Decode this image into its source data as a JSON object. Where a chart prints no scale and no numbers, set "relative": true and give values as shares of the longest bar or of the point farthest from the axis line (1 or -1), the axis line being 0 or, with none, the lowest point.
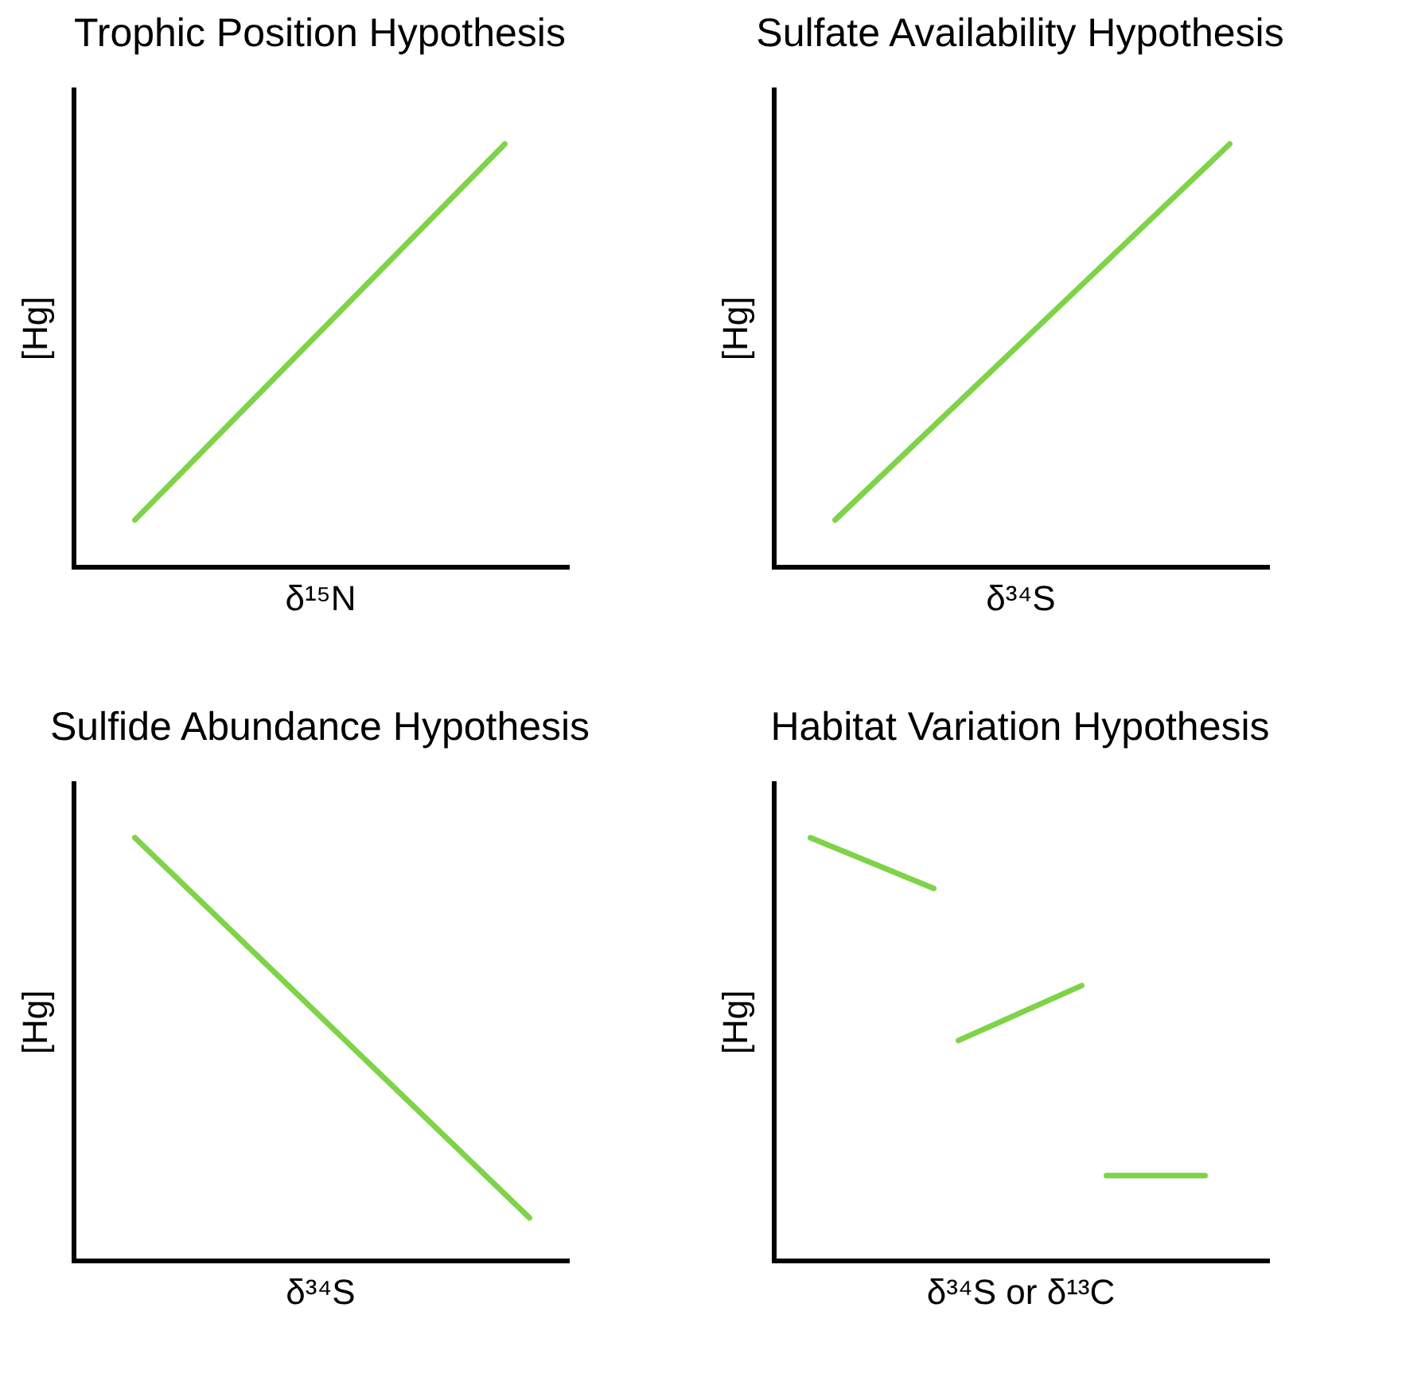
{
  "chart_data": [
    {
      "type": "line",
      "title": "Trophic Position Hypothesis",
      "xlabel": "δ¹⁵N",
      "ylabel": "[Hg]",
      "relative": true,
      "tick_labels": false,
      "categories": [
        null,
        null,
        null,
        null,
        null,
        null,
        null,
        null,
        null,
        null,
        null,
        null,
        null,
        null,
        null,
        null,
        null,
        null,
        null,
        null
      ],
      "series": [
        {
          "color": "#7ed348",
          "values": [
            null,
            null,
            0.11,
            null,
            null,
            null,
            null,
            null,
            null,
            null,
            null,
            null,
            null,
            null,
            null,
            null,
            null,
            1,
            null,
            null
          ]
        }
      ]
    },
    {
      "type": "line",
      "title": "Sulfate Availability Hypothesis",
      "xlabel": "δ³⁴S",
      "ylabel": "[Hg]",
      "relative": true,
      "tick_labels": false,
      "categories": [
        null,
        null,
        null,
        null,
        null,
        null,
        null,
        null,
        null,
        null,
        null,
        null,
        null,
        null,
        null,
        null,
        null,
        null,
        null,
        null
      ],
      "series": [
        {
          "color": "#7ed348",
          "values": [
            null,
            null,
            0.11,
            null,
            null,
            null,
            null,
            null,
            null,
            null,
            null,
            null,
            null,
            null,
            null,
            null,
            null,
            null,
            1,
            null
          ]
        }
      ]
    },
    {
      "type": "line",
      "title": "Sulfide Abundance Hypothesis",
      "xlabel": "δ³⁴S",
      "ylabel": "[Hg]",
      "relative": true,
      "tick_labels": false,
      "categories": [
        null,
        null,
        null,
        null,
        null,
        null,
        null,
        null,
        null,
        null,
        null,
        null,
        null,
        null,
        null,
        null,
        null,
        null,
        null,
        null
      ],
      "series": [
        {
          "color": "#7ed348",
          "values": [
            null,
            null,
            1,
            null,
            null,
            null,
            null,
            null,
            null,
            null,
            null,
            null,
            null,
            null,
            null,
            null,
            null,
            null,
            0.1,
            null
          ]
        }
      ]
    },
    {
      "type": "line",
      "title": "Habitat Variation Hypothesis",
      "xlabel": "δ³⁴S or δ¹³C",
      "ylabel": "[Hg]",
      "relative": true,
      "tick_labels": false,
      "categories": [
        null,
        null,
        null,
        null,
        null,
        null,
        null,
        null,
        null,
        null,
        null,
        null,
        null,
        null,
        null,
        null,
        null,
        null,
        null,
        null
      ],
      "series": [
        {
          "color": "#7ed348",
          "values": [
            null,
            1,
            null,
            null,
            null,
            null,
            0.88,
            null,
            null,
            null,
            null,
            null,
            null,
            null,
            null,
            null,
            null,
            null,
            null,
            null
          ]
        },
        {
          "color": "#7ed348",
          "values": [
            null,
            null,
            null,
            null,
            null,
            null,
            null,
            0.52,
            null,
            null,
            null,
            null,
            0.65,
            null,
            null,
            null,
            null,
            null,
            null,
            null
          ]
        },
        {
          "color": "#7ed348",
          "values": [
            null,
            null,
            null,
            null,
            null,
            null,
            null,
            null,
            null,
            null,
            null,
            null,
            null,
            0.2,
            null,
            null,
            null,
            0.2,
            null,
            null
          ]
        }
      ]
    }
  ]
}
